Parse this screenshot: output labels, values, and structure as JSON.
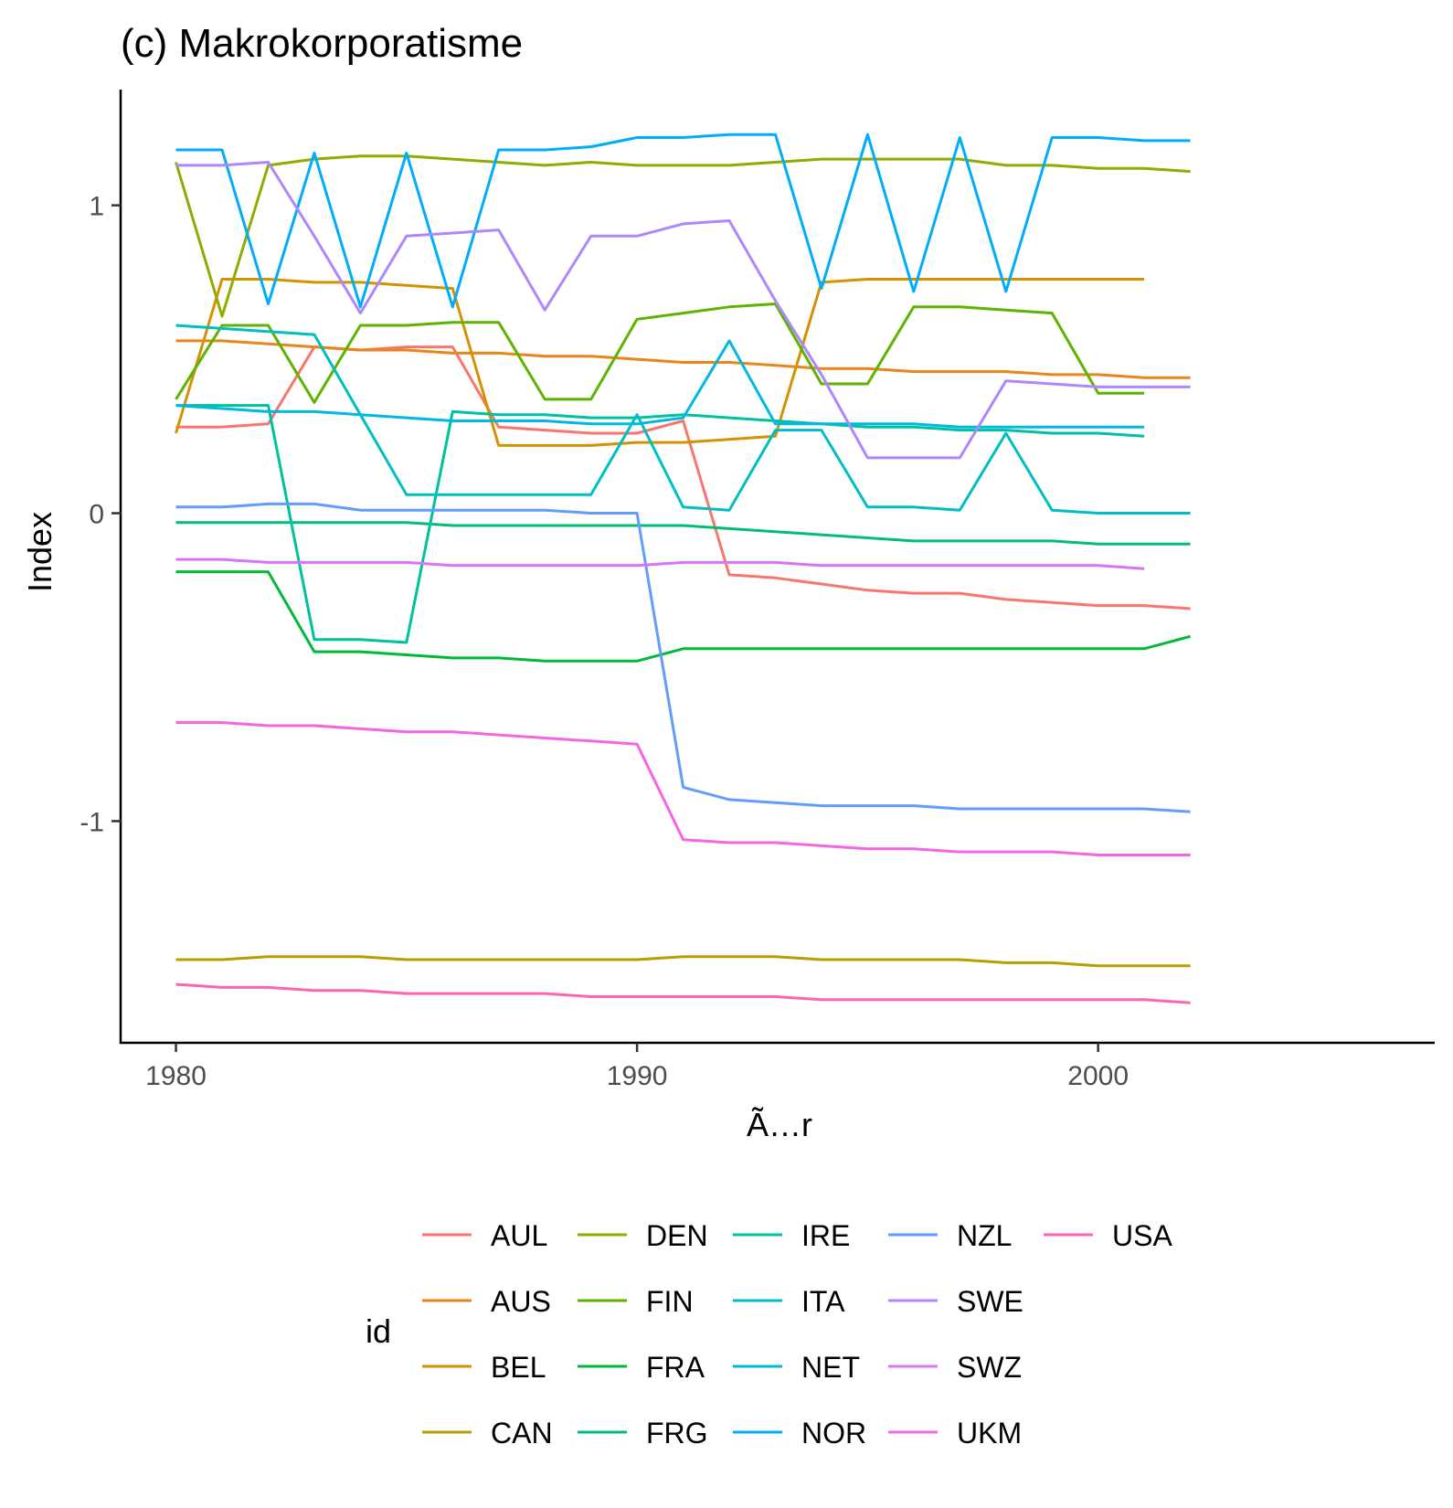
{
  "chart_data": {
    "type": "line",
    "title": "(c) Makrokorporatisme",
    "xlabel": "Ã…r",
    "ylabel": "Index",
    "xlim": [
      1978.8,
      2007.3
    ],
    "ylim": [
      -1.72,
      1.37
    ],
    "xticks": [
      1980,
      1990,
      2000
    ],
    "yticks": [
      -1,
      0,
      1
    ],
    "ytick_labels": [
      "-1",
      "0",
      "1"
    ],
    "grid": false,
    "legend": {
      "title": "id",
      "position": "bottom",
      "columns": 5,
      "rows": 4
    },
    "series": [
      {
        "name": "AUL",
        "color": "#F8766D",
        "x": [
          1980,
          1981,
          1982,
          1983,
          1984,
          1985,
          1986,
          1987,
          1988,
          1989,
          1990,
          1991,
          1992,
          1993,
          1994,
          1995,
          1996,
          1997,
          1998,
          1999,
          2000,
          2001,
          2002
        ],
        "y": [
          0.28,
          0.28,
          0.29,
          0.54,
          0.53,
          0.54,
          0.54,
          0.28,
          0.27,
          0.26,
          0.26,
          0.3,
          -0.2,
          -0.21,
          -0.23,
          -0.25,
          -0.26,
          -0.26,
          -0.28,
          -0.29,
          -0.3,
          -0.3,
          -0.31
        ]
      },
      {
        "name": "AUS",
        "color": "#E7861B",
        "x": [
          1980,
          1981,
          1982,
          1983,
          1984,
          1985,
          1986,
          1987,
          1988,
          1989,
          1990,
          1991,
          1992,
          1993,
          1994,
          1995,
          1996,
          1997,
          1998,
          1999,
          2000,
          2001,
          2002
        ],
        "y": [
          0.56,
          0.56,
          0.55,
          0.54,
          0.53,
          0.53,
          0.52,
          0.52,
          0.51,
          0.51,
          0.5,
          0.49,
          0.49,
          0.48,
          0.47,
          0.47,
          0.46,
          0.46,
          0.46,
          0.45,
          0.45,
          0.44,
          0.44
        ]
      },
      {
        "name": "BEL",
        "color": "#D39200",
        "x": [
          1980,
          1981,
          1982,
          1983,
          1984,
          1985,
          1986,
          1987,
          1988,
          1989,
          1990,
          1991,
          1992,
          1993,
          1994,
          1995,
          1996,
          1997,
          1998,
          1999,
          2000,
          2001
        ],
        "y": [
          0.26,
          0.76,
          0.76,
          0.75,
          0.75,
          0.74,
          0.73,
          0.22,
          0.22,
          0.22,
          0.23,
          0.23,
          0.24,
          0.25,
          0.75,
          0.76,
          0.76,
          0.76,
          0.76,
          0.76,
          0.76,
          0.76
        ]
      },
      {
        "name": "CAN",
        "color": "#B79F00",
        "x": [
          1980,
          1981,
          1982,
          1983,
          1984,
          1985,
          1986,
          1987,
          1988,
          1989,
          1990,
          1991,
          1992,
          1993,
          1994,
          1995,
          1996,
          1997,
          1998,
          1999,
          2000,
          2001,
          2002
        ],
        "y": [
          -1.45,
          -1.45,
          -1.44,
          -1.44,
          -1.44,
          -1.45,
          -1.45,
          -1.45,
          -1.45,
          -1.45,
          -1.45,
          -1.44,
          -1.44,
          -1.44,
          -1.45,
          -1.45,
          -1.45,
          -1.45,
          -1.46,
          -1.46,
          -1.47,
          -1.47,
          -1.47
        ]
      },
      {
        "name": "DEN",
        "color": "#93AA00",
        "x": [
          1980,
          1981,
          1982,
          1983,
          1984,
          1985,
          1986,
          1987,
          1988,
          1989,
          1990,
          1991,
          1992,
          1993,
          1994,
          1995,
          1996,
          1997,
          1998,
          1999,
          2000,
          2001,
          2002
        ],
        "y": [
          1.14,
          0.64,
          1.13,
          1.15,
          1.16,
          1.16,
          1.15,
          1.14,
          1.13,
          1.14,
          1.13,
          1.13,
          1.13,
          1.14,
          1.15,
          1.15,
          1.15,
          1.15,
          1.13,
          1.13,
          1.12,
          1.12,
          1.11
        ]
      },
      {
        "name": "FIN",
        "color": "#5EB300",
        "x": [
          1980,
          1981,
          1982,
          1983,
          1984,
          1985,
          1986,
          1987,
          1988,
          1989,
          1990,
          1991,
          1992,
          1993,
          1994,
          1995,
          1996,
          1997,
          1998,
          1999,
          2000,
          2001
        ],
        "y": [
          0.37,
          0.61,
          0.61,
          0.36,
          0.61,
          0.61,
          0.62,
          0.62,
          0.37,
          0.37,
          0.63,
          0.65,
          0.67,
          0.68,
          0.42,
          0.42,
          0.67,
          0.67,
          0.66,
          0.65,
          0.39,
          0.39
        ]
      },
      {
        "name": "FRA",
        "color": "#00BA38",
        "x": [
          1980,
          1981,
          1982,
          1983,
          1984,
          1985,
          1986,
          1987,
          1988,
          1989,
          1990,
          1991,
          1992,
          1993,
          1994,
          1995,
          1996,
          1997,
          1998,
          1999,
          2000,
          2001,
          2002
        ],
        "y": [
          -0.19,
          -0.19,
          -0.19,
          -0.45,
          -0.45,
          -0.46,
          -0.47,
          -0.47,
          -0.48,
          -0.48,
          -0.48,
          -0.44,
          -0.44,
          -0.44,
          -0.44,
          -0.44,
          -0.44,
          -0.44,
          -0.44,
          -0.44,
          -0.44,
          -0.44,
          -0.4
        ]
      },
      {
        "name": "FRG",
        "color": "#00BF74",
        "x": [
          1980,
          1981,
          1982,
          1983,
          1984,
          1985,
          1986,
          1987,
          1988,
          1989,
          1990,
          1991,
          1992,
          1993,
          1994,
          1995,
          1996,
          1997,
          1998,
          1999,
          2000,
          2001,
          2002
        ],
        "y": [
          -0.03,
          -0.03,
          -0.03,
          -0.03,
          -0.03,
          -0.03,
          -0.04,
          -0.04,
          -0.04,
          -0.04,
          -0.04,
          -0.04,
          -0.05,
          -0.06,
          -0.07,
          -0.08,
          -0.09,
          -0.09,
          -0.09,
          -0.09,
          -0.1,
          -0.1,
          -0.1
        ]
      },
      {
        "name": "IRE",
        "color": "#00C19F",
        "x": [
          1980,
          1981,
          1982,
          1983,
          1984,
          1985,
          1986,
          1987,
          1988,
          1989,
          1990,
          1991,
          1992,
          1993,
          1994,
          1995,
          1996,
          1997,
          1998,
          1999,
          2000,
          2001
        ],
        "y": [
          0.35,
          0.35,
          0.35,
          -0.41,
          -0.41,
          -0.42,
          0.33,
          0.32,
          0.32,
          0.31,
          0.31,
          0.32,
          0.31,
          0.3,
          0.29,
          0.28,
          0.28,
          0.27,
          0.27,
          0.26,
          0.26,
          0.25
        ]
      },
      {
        "name": "ITA",
        "color": "#00BFC4",
        "x": [
          1980,
          1981,
          1982,
          1983,
          1984,
          1985,
          1986,
          1987,
          1988,
          1989,
          1990,
          1991,
          1992,
          1993,
          1994,
          1995,
          1996,
          1997,
          1998,
          1999,
          2000,
          2001,
          2002
        ],
        "y": [
          0.61,
          0.6,
          0.59,
          0.58,
          0.32,
          0.06,
          0.06,
          0.06,
          0.06,
          0.06,
          0.32,
          0.02,
          0.01,
          0.27,
          0.27,
          0.02,
          0.02,
          0.01,
          0.26,
          0.01,
          0.0,
          0.0,
          0.0
        ]
      },
      {
        "name": "NET",
        "color": "#00B9E3",
        "x": [
          1980,
          1981,
          1982,
          1983,
          1984,
          1985,
          1986,
          1987,
          1988,
          1989,
          1990,
          1991,
          1992,
          1993,
          1994,
          1995,
          1996,
          1997,
          1998,
          1999,
          2000,
          2001
        ],
        "y": [
          0.35,
          0.34,
          0.33,
          0.33,
          0.32,
          0.31,
          0.3,
          0.3,
          0.3,
          0.29,
          0.29,
          0.31,
          0.56,
          0.29,
          0.29,
          0.29,
          0.29,
          0.28,
          0.28,
          0.28,
          0.28,
          0.28
        ]
      },
      {
        "name": "NOR",
        "color": "#00ADFA",
        "x": [
          1980,
          1981,
          1982,
          1983,
          1984,
          1985,
          1986,
          1987,
          1988,
          1989,
          1990,
          1991,
          1992,
          1993,
          1994,
          1995,
          1996,
          1997,
          1998,
          1999,
          2000,
          2001,
          2002
        ],
        "y": [
          1.18,
          1.18,
          0.68,
          1.17,
          0.67,
          1.17,
          0.67,
          1.18,
          1.18,
          1.19,
          1.22,
          1.22,
          1.23,
          1.23,
          0.73,
          1.23,
          0.72,
          1.22,
          0.72,
          1.22,
          1.22,
          1.21,
          1.21
        ]
      },
      {
        "name": "NZL",
        "color": "#619CFF",
        "x": [
          1980,
          1981,
          1982,
          1983,
          1984,
          1985,
          1986,
          1987,
          1988,
          1989,
          1990,
          1991,
          1992,
          1993,
          1994,
          1995,
          1996,
          1997,
          1998,
          1999,
          2000,
          2001,
          2002
        ],
        "y": [
          0.02,
          0.02,
          0.03,
          0.03,
          0.01,
          0.01,
          0.01,
          0.01,
          0.01,
          0.0,
          0.0,
          -0.89,
          -0.93,
          -0.94,
          -0.95,
          -0.95,
          -0.95,
          -0.96,
          -0.96,
          -0.96,
          -0.96,
          -0.96,
          -0.97
        ]
      },
      {
        "name": "SWE",
        "color": "#AE87FF",
        "x": [
          1980,
          1981,
          1982,
          1983,
          1984,
          1985,
          1986,
          1987,
          1988,
          1989,
          1990,
          1991,
          1992,
          1993,
          1994,
          1995,
          1996,
          1997,
          1998,
          1999,
          2000,
          2001,
          2002
        ],
        "y": [
          1.13,
          1.13,
          1.14,
          0.9,
          0.65,
          0.9,
          0.91,
          0.92,
          0.66,
          0.9,
          0.9,
          0.94,
          0.95,
          0.69,
          0.45,
          0.18,
          0.18,
          0.18,
          0.43,
          0.42,
          0.41,
          0.41,
          0.41
        ]
      },
      {
        "name": "SWZ",
        "color": "#DB72FB",
        "x": [
          1980,
          1981,
          1982,
          1983,
          1984,
          1985,
          1986,
          1987,
          1988,
          1989,
          1990,
          1991,
          1992,
          1993,
          1994,
          1995,
          1996,
          1997,
          1998,
          1999,
          2000,
          2001
        ],
        "y": [
          -0.15,
          -0.15,
          -0.16,
          -0.16,
          -0.16,
          -0.16,
          -0.17,
          -0.17,
          -0.17,
          -0.17,
          -0.17,
          -0.16,
          -0.16,
          -0.16,
          -0.17,
          -0.17,
          -0.17,
          -0.17,
          -0.17,
          -0.17,
          -0.17,
          -0.18
        ]
      },
      {
        "name": "UKM",
        "color": "#F564E3",
        "x": [
          1980,
          1981,
          1982,
          1983,
          1984,
          1985,
          1986,
          1987,
          1988,
          1989,
          1990,
          1991,
          1992,
          1993,
          1994,
          1995,
          1996,
          1997,
          1998,
          1999,
          2000,
          2001,
          2002
        ],
        "y": [
          -0.68,
          -0.68,
          -0.69,
          -0.69,
          -0.7,
          -0.71,
          -0.71,
          -0.72,
          -0.73,
          -0.74,
          -0.75,
          -1.06,
          -1.07,
          -1.07,
          -1.08,
          -1.09,
          -1.09,
          -1.1,
          -1.1,
          -1.1,
          -1.11,
          -1.11,
          -1.11
        ]
      },
      {
        "name": "USA",
        "color": "#FF64B0",
        "x": [
          1980,
          1981,
          1982,
          1983,
          1984,
          1985,
          1986,
          1987,
          1988,
          1989,
          1990,
          1991,
          1992,
          1993,
          1994,
          1995,
          1996,
          1997,
          1998,
          1999,
          2000,
          2001,
          2002
        ],
        "y": [
          -1.53,
          -1.54,
          -1.54,
          -1.55,
          -1.55,
          -1.56,
          -1.56,
          -1.56,
          -1.56,
          -1.57,
          -1.57,
          -1.57,
          -1.57,
          -1.57,
          -1.58,
          -1.58,
          -1.58,
          -1.58,
          -1.58,
          -1.58,
          -1.58,
          -1.58,
          -1.59
        ]
      }
    ]
  }
}
